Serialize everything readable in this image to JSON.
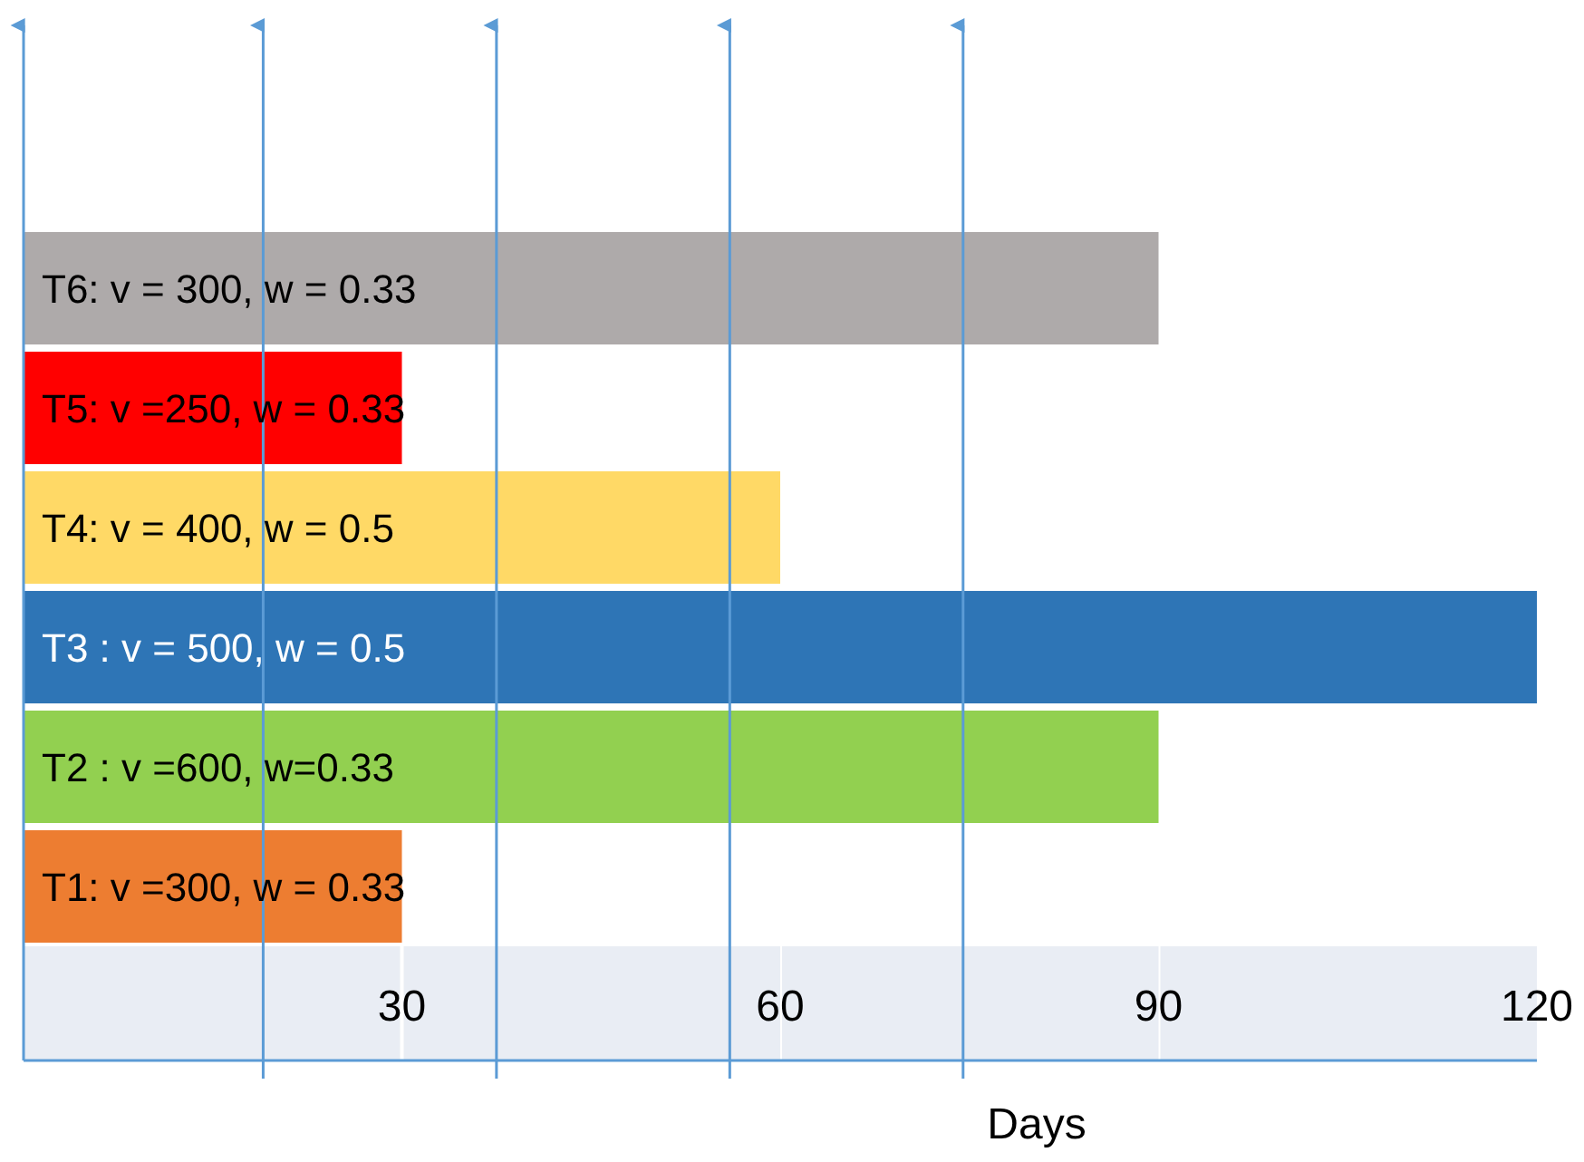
{
  "chart_data": {
    "type": "bar",
    "orientation": "horizontal",
    "xlabel": "Days",
    "categories": [
      "T6: v = 300, w = 0.33",
      "T5: v =250, w = 0.33",
      "T4: v = 400, w = 0.5",
      "T3 : v = 500, w =  0.5",
      "T2 : v =600,  w=0.33",
      "T1: v =300, w = 0.33"
    ],
    "values": [
      90,
      30,
      60,
      120,
      90,
      30
    ],
    "colors": [
      "#aeaaaa",
      "#ff0000",
      "#ffd966",
      "#2e75b6",
      "#92d050",
      "#ed7d31"
    ],
    "xlim": [
      0,
      120
    ],
    "xticks": [
      30,
      60,
      90,
      120
    ],
    "ref_lines": [
      {
        "axis": "x",
        "value": 19,
        "color": "#5b9bd5"
      },
      {
        "axis": "x",
        "value": 37.5,
        "color": "#5b9bd5"
      },
      {
        "axis": "x",
        "value": 56,
        "color": "#5b9bd5"
      },
      {
        "axis": "x",
        "value": 74.5,
        "color": "#5b9bd5"
      }
    ]
  }
}
